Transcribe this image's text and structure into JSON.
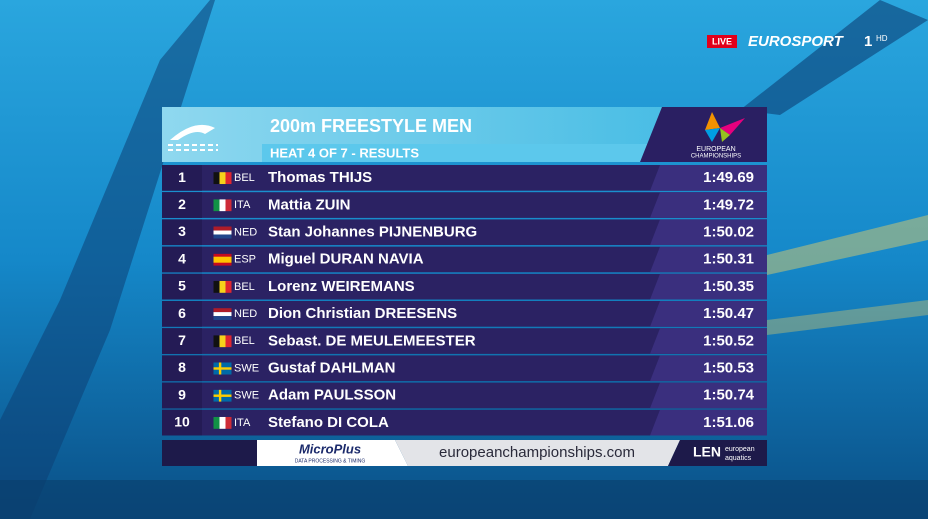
{
  "broadcast": {
    "live": "LIVE",
    "channel": "EUROSPORT",
    "channel_number": "1",
    "quality": "HD"
  },
  "header": {
    "title": "200m FREESTYLE MEN",
    "subtitle": "HEAT 4 OF 7 - RESULTS",
    "event_logo": [
      "EUROPEAN",
      "CHAMPIONSHIPS"
    ]
  },
  "table": {
    "rows": [
      [
        "1",
        "BEL",
        "Thomas THIJS",
        "1:49.69"
      ],
      [
        "2",
        "ITA",
        "Mattia ZUIN",
        "1:49.72"
      ],
      [
        "3",
        "NED",
        "Stan Johannes PIJNENBURG",
        "1:50.02"
      ],
      [
        "4",
        "ESP",
        "Miguel DURAN NAVIA",
        "1:50.31"
      ],
      [
        "5",
        "BEL",
        "Lorenz WEIREMANS",
        "1:50.35"
      ],
      [
        "6",
        "NED",
        "Dion Christian DREESENS",
        "1:50.47"
      ],
      [
        "7",
        "BEL",
        "Sebast. DE MEULEMEESTER",
        "1:50.52"
      ],
      [
        "8",
        "SWE",
        "Gustaf DAHLMAN",
        "1:50.53"
      ],
      [
        "9",
        "SWE",
        "Adam PAULSSON",
        "1:50.74"
      ],
      [
        "10",
        "ITA",
        "Stefano DI COLA",
        "1:51.06"
      ]
    ]
  },
  "footer": {
    "sponsor": "MicroPlus",
    "sponsor_tagline": "DATA PROCESSING & TIMING",
    "url": "europeanchampionships.com",
    "federation": "LEN",
    "federation_sub": [
      "european",
      "aquatics"
    ]
  }
}
